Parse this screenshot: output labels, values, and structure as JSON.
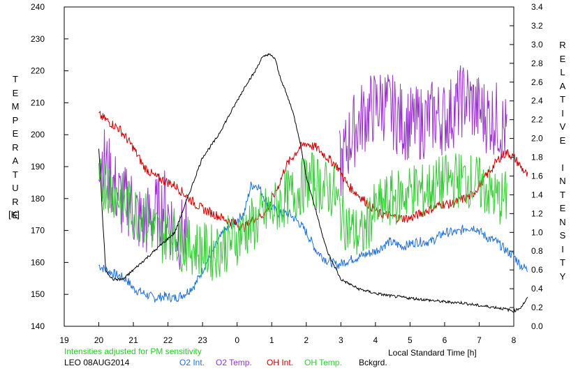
{
  "chart_data": {
    "type": "line",
    "left_axis": {
      "ylabel_letters": [
        "T",
        "E",
        "M",
        "P",
        "E",
        "R",
        "A",
        "T",
        "U",
        "R",
        "E"
      ],
      "unit": "[K]",
      "ylim": [
        140,
        240
      ],
      "ticks": [
        "140",
        "150",
        "160",
        "170",
        "180",
        "190",
        "200",
        "210",
        "220",
        "230",
        "240"
      ]
    },
    "right_axis": {
      "ylabel_letters": [
        "R",
        "E",
        "L",
        "A",
        "T",
        "I",
        "V",
        "E",
        "",
        "I",
        "N",
        "T",
        "E",
        "N",
        "S",
        "I",
        "T",
        "Y"
      ],
      "ylim": [
        0.0,
        3.4
      ],
      "ticks": [
        "0.0",
        "0.2",
        "0.4",
        "0.6",
        "0.8",
        "1.0",
        "1.2",
        "1.4",
        "1.6",
        "1.8",
        "2.0",
        "2.2",
        "2.4",
        "2.6",
        "2.8",
        "3.0",
        "3.2",
        "3.4"
      ]
    },
    "x_axis": {
      "xlabel": "Local Standard Time [h]",
      "ticks": [
        "19",
        "20",
        "21",
        "22",
        "23",
        "0",
        "1",
        "2",
        "3",
        "4",
        "5",
        "6",
        "7",
        "8"
      ],
      "xlim": [
        19,
        32
      ]
    },
    "note": "Intensities adjusted for PM sensitivity",
    "station": "LEO 08AUG2014",
    "series": [
      {
        "name": "O2 Int.",
        "color": "#1f6fd6",
        "axis": "right",
        "x": [
          20.0,
          20.2,
          20.5,
          20.8,
          21.0,
          21.3,
          21.6,
          21.9,
          22.2,
          22.5,
          22.8,
          23.0,
          23.3,
          23.6,
          23.9,
          24.2,
          24.4,
          24.6,
          24.9,
          25.2,
          25.5,
          25.8,
          26.0,
          26.3,
          26.6,
          26.9,
          27.2,
          27.6,
          28.0,
          28.4,
          28.8,
          29.2,
          29.6,
          30.0,
          30.4,
          30.6,
          30.9,
          31.2,
          31.5,
          31.8,
          32.0,
          32.2,
          32.4
        ],
        "y": [
          0.65,
          0.6,
          0.55,
          0.5,
          0.4,
          0.35,
          0.3,
          0.32,
          0.3,
          0.35,
          0.45,
          0.6,
          0.8,
          1.0,
          1.1,
          1.2,
          1.5,
          1.5,
          1.3,
          1.2,
          1.2,
          1.1,
          1.0,
          0.8,
          0.7,
          0.65,
          0.7,
          0.75,
          0.8,
          0.9,
          0.85,
          0.9,
          0.9,
          1.0,
          1.0,
          1.05,
          1.05,
          0.95,
          0.9,
          0.8,
          0.75,
          0.65,
          0.6
        ]
      },
      {
        "name": "O2 Temp.",
        "color": "#9933cc",
        "axis": "left",
        "x": [
          20.0,
          20.4,
          20.7,
          20.9,
          21.0,
          21.3,
          21.6,
          21.9,
          22.2,
          22.5,
          27.0,
          27.3,
          27.6,
          27.9,
          28.2,
          28.5,
          28.8,
          29.1,
          29.4,
          29.7,
          30.0,
          30.3,
          30.6,
          30.9,
          31.2,
          31.5,
          31.8
        ],
        "y": [
          195,
          185,
          178,
          180,
          176,
          172,
          175,
          178,
          170,
          168,
          190,
          200,
          205,
          208,
          210,
          207,
          204,
          203,
          204,
          206,
          205,
          208,
          212,
          208,
          206,
          205,
          200
        ]
      },
      {
        "name": "OH Int.",
        "color": "#cc0000",
        "axis": "right",
        "x": [
          20.0,
          20.2,
          20.4,
          20.6,
          20.8,
          21.0,
          21.3,
          21.6,
          21.9,
          22.2,
          22.5,
          22.8,
          23.0,
          23.3,
          23.6,
          23.9,
          24.2,
          24.5,
          24.8,
          25.0,
          25.2,
          25.4,
          25.6,
          25.8,
          26.0,
          26.3,
          26.6,
          26.9,
          27.2,
          27.5,
          27.8,
          28.1,
          28.4,
          28.7,
          29.0,
          29.3,
          29.6,
          29.9,
          30.2,
          30.5,
          30.8,
          31.0,
          31.2,
          31.4,
          31.6,
          31.8,
          32.0,
          32.2,
          32.4
        ],
        "y": [
          2.25,
          2.2,
          2.15,
          2.1,
          2.0,
          1.9,
          1.7,
          1.6,
          1.55,
          1.5,
          1.4,
          1.3,
          1.25,
          1.2,
          1.15,
          1.1,
          1.05,
          1.15,
          1.2,
          1.35,
          1.5,
          1.7,
          1.8,
          1.9,
          1.95,
          1.9,
          1.8,
          1.7,
          1.5,
          1.4,
          1.3,
          1.2,
          1.18,
          1.15,
          1.15,
          1.2,
          1.25,
          1.3,
          1.3,
          1.35,
          1.4,
          1.5,
          1.6,
          1.7,
          1.8,
          1.85,
          1.8,
          1.7,
          1.6
        ]
      },
      {
        "name": "OH Temp.",
        "color": "#33cc33",
        "axis": "left",
        "x": [
          20.0,
          20.2,
          20.4,
          20.6,
          20.8,
          21.0,
          21.2,
          21.5,
          21.8,
          22.1,
          22.4,
          22.7,
          23.0,
          23.3,
          23.6,
          23.9,
          24.2,
          24.5,
          24.8,
          25.1,
          25.4,
          25.7,
          26.0,
          26.2,
          26.4,
          26.6,
          26.8,
          27.0,
          27.3,
          27.6,
          27.9,
          28.2,
          28.5,
          28.8,
          29.1,
          29.4,
          29.7,
          30.0,
          30.3,
          30.6,
          30.9,
          31.2,
          31.5,
          31.8
        ],
        "y": [
          184,
          185,
          183,
          180,
          178,
          176,
          175,
          172,
          168,
          170,
          166,
          165,
          164,
          163,
          165,
          167,
          170,
          172,
          175,
          177,
          180,
          182,
          185,
          186,
          184,
          183,
          182,
          175,
          170,
          168,
          175,
          178,
          180,
          181,
          183,
          182,
          184,
          185,
          186,
          186,
          185,
          183,
          180,
          180
        ]
      },
      {
        "name": "Bckgrd.",
        "color": "#000000",
        "axis": "right",
        "x": [
          20.0,
          20.05,
          20.1,
          20.2,
          20.4,
          20.7,
          21.0,
          21.3,
          21.6,
          21.9,
          22.2,
          22.4,
          22.6,
          22.8,
          23.0,
          23.2,
          23.4,
          23.7,
          24.0,
          24.3,
          24.5,
          24.7,
          24.9,
          25.1,
          25.2,
          25.4,
          25.6,
          25.8,
          26.0,
          26.3,
          26.6,
          27.0,
          27.5,
          28.0,
          28.5,
          29.0,
          29.5,
          30.0,
          30.5,
          31.0,
          31.5,
          31.8,
          32.0,
          32.2,
          32.4
        ],
        "y": [
          1.9,
          1.6,
          1.2,
          0.6,
          0.5,
          0.5,
          0.6,
          0.7,
          0.8,
          0.9,
          1.0,
          1.2,
          1.4,
          1.6,
          1.8,
          1.9,
          2.0,
          2.2,
          2.4,
          2.6,
          2.7,
          2.85,
          2.9,
          2.85,
          2.7,
          2.5,
          2.3,
          2.0,
          1.6,
          1.2,
          0.8,
          0.5,
          0.4,
          0.35,
          0.32,
          0.3,
          0.28,
          0.26,
          0.25,
          0.22,
          0.2,
          0.18,
          0.16,
          0.2,
          0.3
        ]
      }
    ]
  },
  "legend": {
    "o2_int": "O2 Int.",
    "o2_temp": "O2 Temp.",
    "oh_int": "OH Int.",
    "oh_temp": "OH Temp.",
    "bckgrd": "Bckgrd."
  }
}
